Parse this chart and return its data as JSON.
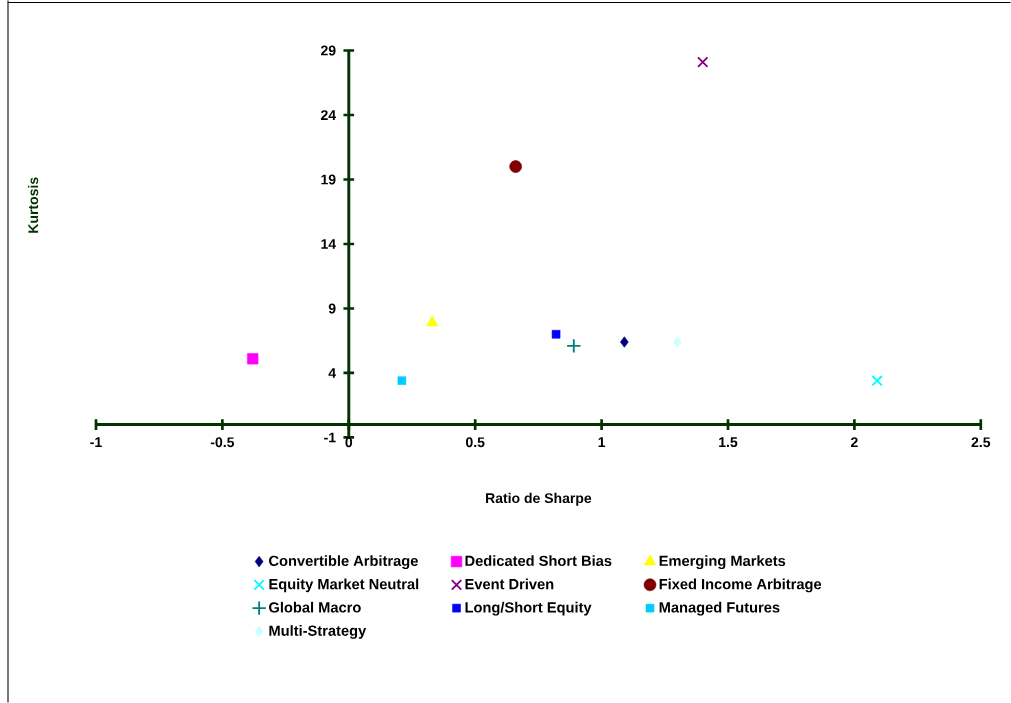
{
  "chart_data": {
    "type": "scatter",
    "xlabel": "Ratio de Sharpe",
    "ylabel": "Kurtosis",
    "xlim": [
      -1,
      2.5
    ],
    "xticks": [
      -1,
      -0.5,
      0,
      0.5,
      1,
      1.5,
      2,
      2.5
    ],
    "ylim": [
      -1,
      29
    ],
    "yticks": [
      -1,
      4,
      9,
      14,
      19,
      24,
      29
    ],
    "legend": "bottom",
    "series": [
      {
        "name": "Convertible Arbitrage",
        "color": "#000080",
        "marker": "diamond",
        "x": [
          1.09
        ],
        "values": [
          6.4
        ]
      },
      {
        "name": "Dedicated Short Bias",
        "color": "#ff00ff",
        "marker": "square",
        "x": [
          -0.38
        ],
        "values": [
          5.1
        ]
      },
      {
        "name": "Emerging Markets",
        "color": "#ffff00",
        "marker": "triangle",
        "x": [
          0.33
        ],
        "values": [
          7.9
        ]
      },
      {
        "name": "Equity Market Neutral",
        "color": "#00ffff",
        "marker": "cross",
        "x": [
          2.09
        ],
        "values": [
          3.4
        ]
      },
      {
        "name": "Event Driven",
        "color": "#800080",
        "marker": "cross",
        "x": [
          1.4
        ],
        "values": [
          28.1
        ]
      },
      {
        "name": "Fixed Income Arbitrage",
        "color": "#800000",
        "marker": "circle",
        "x": [
          0.66
        ],
        "values": [
          20.0
        ]
      },
      {
        "name": "Global Macro",
        "color": "#008080",
        "marker": "plus",
        "x": [
          0.89
        ],
        "values": [
          6.1
        ]
      },
      {
        "name": "Long/Short Equity",
        "color": "#0000ff",
        "marker": "square",
        "x": [
          0.82
        ],
        "values": [
          7.0
        ]
      },
      {
        "name": "Managed Futures",
        "color": "#00ccff",
        "marker": "square",
        "x": [
          0.21
        ],
        "values": [
          3.4
        ]
      },
      {
        "name": "Multi-Strategy",
        "color": "#ccffff",
        "marker": "diamond",
        "x": [
          1.3
        ],
        "values": [
          6.4
        ]
      }
    ]
  }
}
